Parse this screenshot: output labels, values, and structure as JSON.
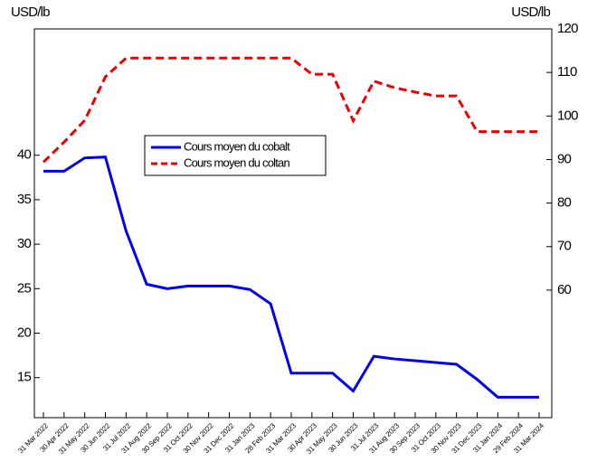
{
  "chart_data": {
    "type": "line",
    "y_unit": "USD/lb",
    "y2_unit": "USD/lb",
    "categories": [
      "31 Mar 2022",
      "30 Apr 2022",
      "31 May 2022",
      "30 Jun 2022",
      "31 Jul 2022",
      "31 Aug 2022",
      "30 Sep 2022",
      "31 Oct 2022",
      "30 Nov 2022",
      "31 Dec 2022",
      "31 Jan 2023",
      "28 Feb 2023",
      "31 Mar 2023",
      "30 Apr 2023",
      "31 May 2023",
      "30 Jun 2023",
      "31 Jul 2023",
      "31 Aug 2023",
      "30 Sep 2023",
      "31 Oct 2023",
      "30 Nov 2023",
      "31 Dec 2023",
      "31 Jan 2024",
      "29 Feb 2024",
      "31 Mar 2024"
    ],
    "series": [
      {
        "name": "Cours moyen du cobalt",
        "color": "#0000ee",
        "dash": "solid",
        "axis": "y",
        "values": [
          38.2,
          38.2,
          39.7,
          39.8,
          31.5,
          25.5,
          25.0,
          25.3,
          25.3,
          25.3,
          24.9,
          23.3,
          15.5,
          15.5,
          15.5,
          13.5,
          17.4,
          17.1,
          16.9,
          16.7,
          16.5,
          14.8,
          12.8,
          12.8,
          12.8
        ]
      },
      {
        "name": "Cours moyen du coltan",
        "color": "#ee0000",
        "dash": "dashed",
        "axis": "y2",
        "values": [
          89.4,
          94,
          99,
          109,
          113.3,
          113.3,
          113.3,
          113.3,
          113.3,
          113.3,
          113.3,
          113.3,
          113.3,
          109.6,
          109.6,
          98.9,
          108,
          106.5,
          105.5,
          104.6,
          104.6,
          96.4,
          96.4,
          96.4,
          96.4
        ]
      }
    ],
    "ylim": [
      10.5,
      54.2
    ],
    "yticks": [
      15,
      20,
      25,
      30,
      35,
      40
    ],
    "y2lim": [
      30.7,
      120
    ],
    "y2ticks": [
      60,
      70,
      80,
      90,
      100,
      110,
      120
    ]
  }
}
